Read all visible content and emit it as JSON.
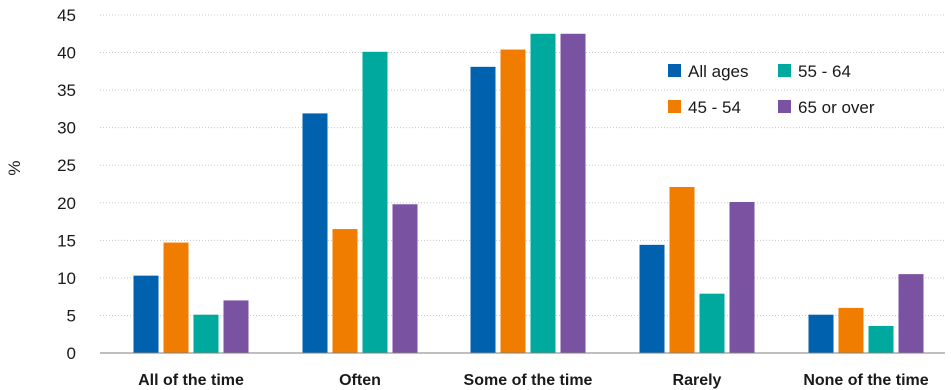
{
  "chart_data": {
    "type": "bar",
    "ylabel": "%",
    "ylim": [
      0,
      45
    ],
    "yticks": [
      0,
      5,
      10,
      15,
      20,
      25,
      30,
      35,
      40,
      45
    ],
    "grid": true,
    "legend_position": "top-right",
    "categories": [
      "All of the time",
      "Often",
      "Some of the time",
      "Rarely",
      "None of the time"
    ],
    "series": [
      {
        "name": "All ages",
        "color": "#0061AE",
        "values": [
          10.3,
          31.9,
          38.1,
          14.4,
          5.1
        ]
      },
      {
        "name": "45 - 54",
        "color": "#F07D00",
        "values": [
          14.7,
          16.5,
          40.4,
          22.1,
          6.0
        ]
      },
      {
        "name": "55 - 64",
        "color": "#00A99D",
        "values": [
          5.1,
          40.1,
          42.5,
          7.9,
          3.6
        ]
      },
      {
        "name": "65 or over",
        "color": "#7A52A2",
        "values": [
          7.0,
          19.8,
          42.5,
          20.1,
          10.5
        ]
      }
    ]
  }
}
